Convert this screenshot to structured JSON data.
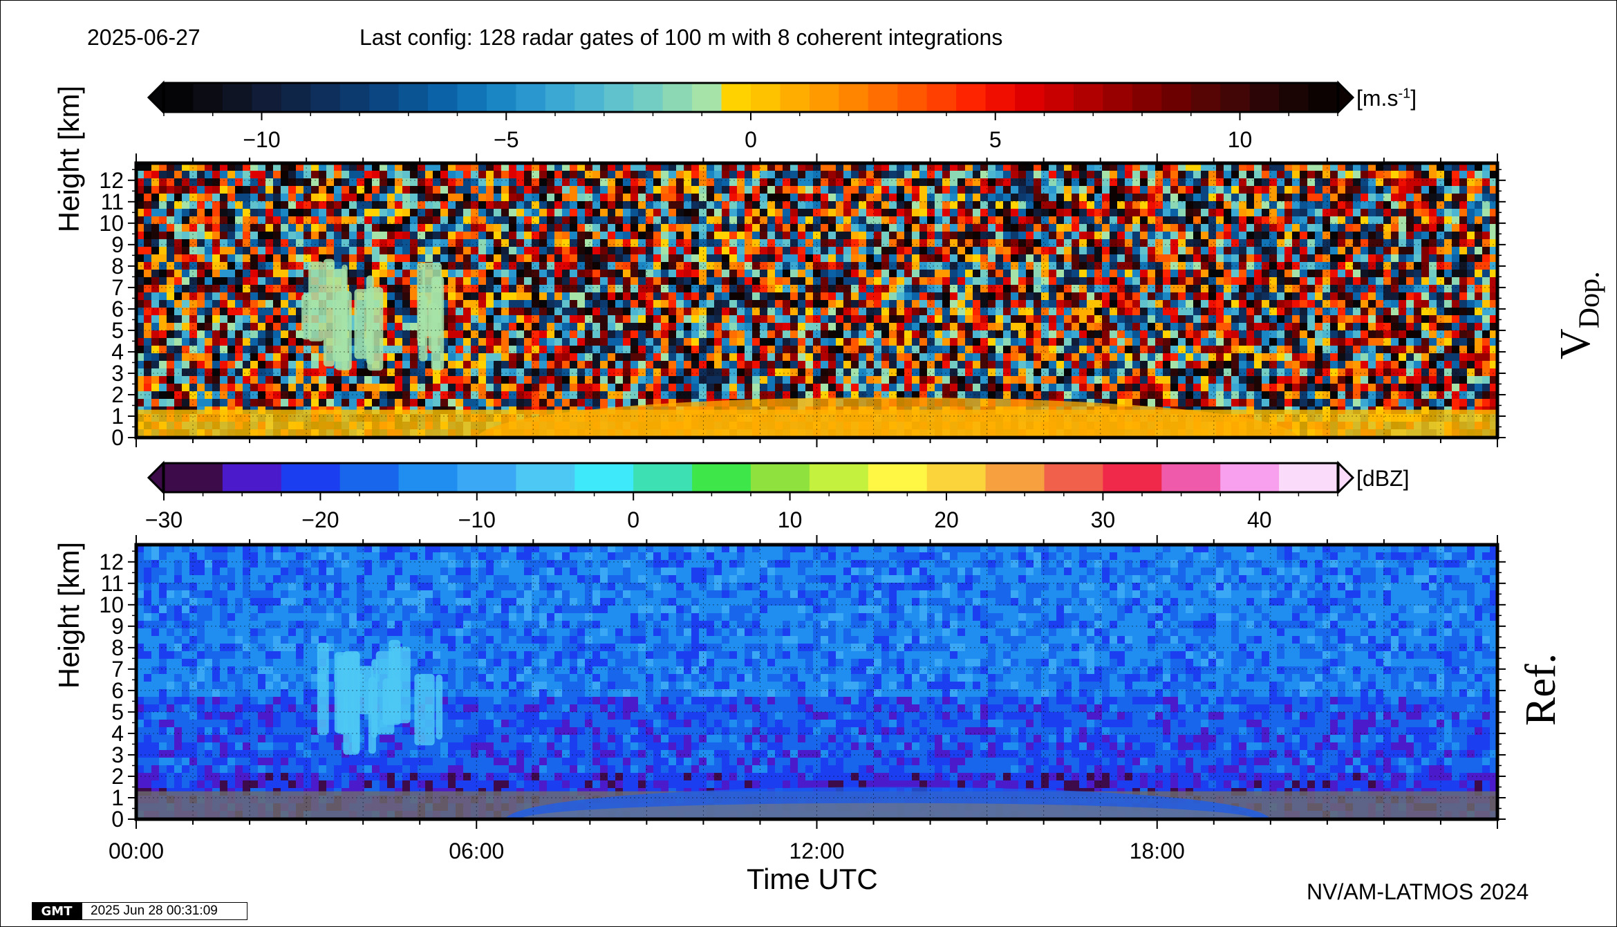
{
  "header": {
    "date": "2025-06-27",
    "config": "Last config: 128 radar gates of 100 m with 8 coherent integrations"
  },
  "footer": {
    "credit": "NV/AM-LATMOS 2024",
    "logo": "GMT",
    "timestamp": "2025 Jun 28 00:31:09"
  },
  "chart_data": [
    {
      "type": "heatmap",
      "title": "",
      "panel_label": "V",
      "panel_label_sub": "Dop.",
      "xlabel": "",
      "ylabel": "Height [km]",
      "x_ticks": [],
      "x_range": [
        "00:00",
        "24:00"
      ],
      "y_ticks": [
        "0",
        "1",
        "2",
        "3",
        "4",
        "5",
        "6",
        "7",
        "8",
        "9",
        "10",
        "11",
        "12"
      ],
      "ylim": [
        0,
        12.8
      ],
      "grid": true,
      "colorbar": {
        "unit_base": "[m.s",
        "unit_sup": "-1",
        "unit_end": "]",
        "range": [
          -12,
          12
        ],
        "tick_values": [
          -10,
          -5,
          0,
          5,
          10
        ],
        "tick_labels": [
          "−10",
          "−5",
          "0",
          "5",
          "10"
        ],
        "colors": [
          "#050507",
          "#0b0c14",
          "#0f1424",
          "#101c38",
          "#0f2548",
          "#0e2f5c",
          "#0c3a6e",
          "#0b4682",
          "#0a5494",
          "#0b62a6",
          "#1074b6",
          "#1b86c4",
          "#2a98ce",
          "#3aa8d2",
          "#4cb6d2",
          "#5fc2cc",
          "#74cdc2",
          "#8cd8b4",
          "#a6e3a8",
          "#ffd200",
          "#ffc200",
          "#ffae00",
          "#ff9a00",
          "#ff8400",
          "#ff6e00",
          "#ff5800",
          "#ff4000",
          "#ff2400",
          "#f00e00",
          "#de0000",
          "#c80000",
          "#b00000",
          "#980000",
          "#820000",
          "#6c0000",
          "#560404",
          "#420606",
          "#2c0606",
          "#1a0404",
          "#0c0202"
        ]
      },
      "features": [
        {
          "name": "boundary layer echo",
          "t_start_h": 0.0,
          "t_end_h": 24.0,
          "z_top_km": 1.3,
          "value_ms": 0.8
        },
        {
          "name": "cloud echo",
          "t_start_h": 2.7,
          "t_end_h": 5.5,
          "z_bottom_km": 3.0,
          "z_top_km": 8.5,
          "value_ms": -1.2
        },
        {
          "name": "daytime convective layer",
          "t_start_h": 6.0,
          "t_end_h": 20.5,
          "z_top_km": 2.5,
          "value_ms": 0.6
        }
      ]
    },
    {
      "type": "heatmap",
      "title": "",
      "panel_label": "Ref.",
      "xlabel": "Time UTC",
      "ylabel": "Height [km]",
      "x_ticks": [
        "00:00",
        "06:00",
        "12:00",
        "18:00"
      ],
      "x_tick_hours": [
        0,
        6,
        12,
        18
      ],
      "x_range": [
        "00:00",
        "24:00"
      ],
      "y_ticks": [
        "0",
        "1",
        "2",
        "3",
        "4",
        "5",
        "6",
        "7",
        "8",
        "9",
        "10",
        "11",
        "12"
      ],
      "ylim": [
        0,
        12.8
      ],
      "grid": true,
      "colorbar": {
        "unit": "[dBZ]",
        "range": [
          -30,
          45
        ],
        "tick_values": [
          -30,
          -20,
          -10,
          0,
          10,
          20,
          30,
          40
        ],
        "tick_labels": [
          "−30",
          "−20",
          "−10",
          "0",
          "10",
          "20",
          "30",
          "40"
        ],
        "colors": [
          "#3d0a4a",
          "#4a1acb",
          "#1b3ff0",
          "#1766ec",
          "#1f8ef0",
          "#3aa8f5",
          "#4dc8f5",
          "#3eeafa",
          "#3ce0b2",
          "#3ee64a",
          "#8fe23e",
          "#c4f03e",
          "#fff744",
          "#fad43a",
          "#f6a040",
          "#f0604a",
          "#f0284a",
          "#f05aaa",
          "#f8a0ee",
          "#fadcfa"
        ]
      },
      "features": [
        {
          "name": "boundary layer echo",
          "t_start_h": 0.0,
          "t_end_h": 24.0,
          "z_top_km": 1.3,
          "value_dbz": -15
        },
        {
          "name": "cloud echo",
          "t_start_h": 2.7,
          "t_end_h": 5.5,
          "z_bottom_km": 3.0,
          "z_top_km": 8.5,
          "value_dbz": -5
        },
        {
          "name": "daytime convective layer",
          "t_start_h": 6.5,
          "t_end_h": 20.0,
          "z_top_km": 2.0,
          "value_dbz": -18
        }
      ]
    }
  ]
}
